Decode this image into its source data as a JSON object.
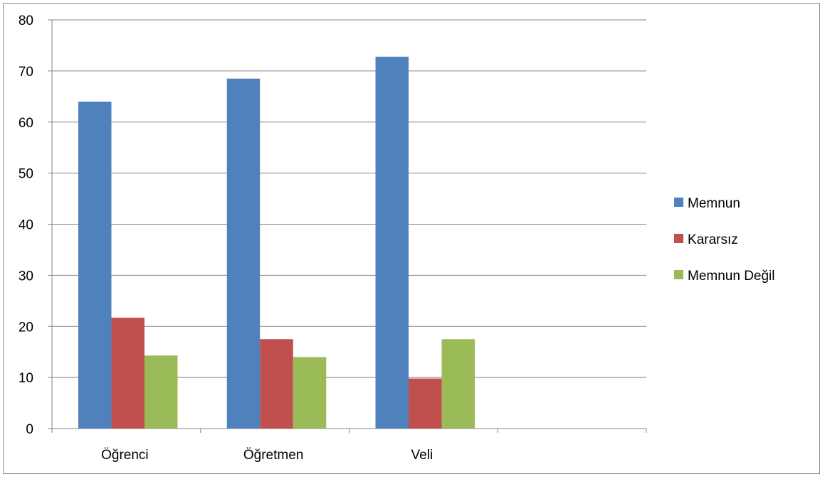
{
  "chart_data": {
    "type": "bar",
    "categories": [
      "Öğrenci",
      "Öğretmen",
      "Veli",
      ""
    ],
    "series": [
      {
        "name": "Memnun",
        "color": "#4F81BD",
        "values": [
          64,
          68.5,
          72.8,
          null
        ]
      },
      {
        "name": "Kararsız",
        "color": "#C0504D",
        "values": [
          21.7,
          17.5,
          9.8,
          null
        ]
      },
      {
        "name": "Memnun Değil",
        "color": "#9BBB59",
        "values": [
          14.3,
          14,
          17.5,
          null
        ]
      }
    ],
    "ylim": [
      0,
      80
    ],
    "yticks": [
      "0",
      "10",
      "20",
      "30",
      "40",
      "50",
      "60",
      "70",
      "80"
    ],
    "grid": true,
    "legend_position": "right",
    "title": "",
    "xlabel": "",
    "ylabel": ""
  }
}
